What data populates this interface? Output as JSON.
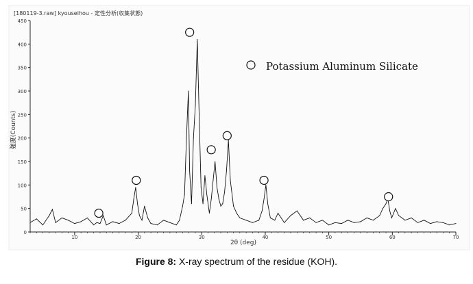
{
  "chart_data": {
    "type": "line",
    "header_text": "[180119-3.raw] kyouseihou - 定性分析(収集状態)",
    "ylabel": "強度(Counts)",
    "xlabel": "2θ (deg)",
    "xlim": [
      3,
      70
    ],
    "ylim": [
      0,
      450
    ],
    "x_ticks": [
      10,
      20,
      30,
      40,
      50,
      60,
      70
    ],
    "y_ticks": [
      0,
      50,
      100,
      150,
      200,
      250,
      300,
      350,
      400,
      450
    ],
    "legend": {
      "marker": "circle",
      "label": "Potassium Aluminum Silicate",
      "placement": "top-right"
    },
    "series": [
      {
        "x": [
          3,
          4,
          5,
          6,
          6.5,
          7,
          8,
          9,
          10,
          11,
          12,
          13,
          13.5,
          14,
          14.5,
          15,
          16,
          17,
          18,
          19,
          19.3,
          19.6,
          19.9,
          20.2,
          20.6,
          21,
          21.5,
          22,
          23,
          24,
          25,
          26,
          26.5,
          27,
          27.3,
          27.6,
          27.9,
          28.1,
          28.4,
          28.7,
          29,
          29.3,
          29.6,
          29.9,
          30.2,
          30.5,
          30.8,
          31.2,
          31.5,
          31.8,
          32.1,
          32.4,
          32.7,
          33,
          33.3,
          33.6,
          33.9,
          34.2,
          34.5,
          35,
          35.5,
          36,
          37,
          38,
          39,
          39.5,
          39.8,
          40.1,
          40.4,
          40.8,
          41.5,
          42,
          43,
          44,
          45,
          46,
          47,
          48,
          49,
          50,
          51,
          52,
          53,
          54,
          55,
          56,
          57,
          58,
          58.5,
          59,
          59.3,
          59.6,
          59.9,
          60.2,
          60.5,
          61,
          62,
          63,
          64,
          65,
          66,
          67,
          68,
          69,
          70
        ],
        "y": [
          20,
          28,
          15,
          35,
          48,
          20,
          30,
          25,
          18,
          22,
          30,
          15,
          20,
          18,
          35,
          15,
          22,
          18,
          25,
          40,
          70,
          95,
          60,
          35,
          25,
          55,
          30,
          18,
          15,
          25,
          20,
          15,
          25,
          55,
          80,
          200,
          300,
          130,
          60,
          200,
          270,
          410,
          250,
          95,
          60,
          120,
          80,
          40,
          70,
          110,
          150,
          95,
          70,
          55,
          60,
          85,
          130,
          195,
          110,
          55,
          40,
          30,
          25,
          20,
          25,
          45,
          70,
          100,
          60,
          30,
          25,
          40,
          20,
          35,
          45,
          25,
          30,
          20,
          25,
          15,
          20,
          18,
          25,
          20,
          22,
          30,
          25,
          35,
          50,
          60,
          70,
          45,
          30,
          40,
          50,
          35,
          25,
          30,
          20,
          25,
          18,
          22,
          20,
          15,
          18
        ]
      }
    ],
    "annotations": [
      {
        "x": 13.8,
        "y": 40
      },
      {
        "x": 19.7,
        "y": 110
      },
      {
        "x": 28.1,
        "y": 425
      },
      {
        "x": 31.5,
        "y": 175
      },
      {
        "x": 34.0,
        "y": 205
      },
      {
        "x": 39.8,
        "y": 110
      },
      {
        "x": 59.4,
        "y": 75
      }
    ]
  },
  "figure": {
    "caption_label": "Figure 8:",
    "caption_text": " X-ray spectrum of the residue (KOH)."
  },
  "colors": {
    "line": "#111111",
    "axis": "#222222",
    "background": "#ffffff"
  }
}
